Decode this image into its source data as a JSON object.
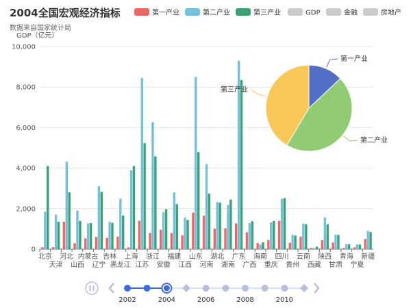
{
  "title": "2004全国宏观经济指标",
  "subtitle": "数据来自国家统计局",
  "colors": {
    "primary": "#ee6666",
    "secondary": "#73c0de",
    "tertiary": "#3ba272",
    "legend_off": "#cccccc",
    "pie_primary": "#5470c6",
    "pie_secondary": "#91cc75",
    "pie_tertiary": "#fac858",
    "timeline": "#3d6be0",
    "timeline_muted": "#b6c0dd"
  },
  "legend": [
    {
      "label": "第一产业",
      "active": true,
      "color": "#ee6666"
    },
    {
      "label": "第二产业",
      "active": true,
      "color": "#73c0de"
    },
    {
      "label": "第三产业",
      "active": true,
      "color": "#3ba272"
    },
    {
      "label": "GDP",
      "active": false,
      "color": "#cccccc"
    },
    {
      "label": "金融",
      "active": false,
      "color": "#cccccc"
    },
    {
      "label": "房地产",
      "active": false,
      "color": "#cccccc"
    }
  ],
  "timeline": {
    "play_icon": "pause-icon",
    "prev_icon": "chevron-left-icon",
    "next_icon": "chevron-right-icon",
    "points": [
      {
        "label": "2002",
        "state": "passed"
      },
      {
        "label": "",
        "state": "passed"
      },
      {
        "label": "2004",
        "state": "current"
      },
      {
        "label": "",
        "state": "future-diamond"
      },
      {
        "label": "2006",
        "state": "future"
      },
      {
        "label": "",
        "state": "future"
      },
      {
        "label": "2008",
        "state": "future"
      },
      {
        "label": "",
        "state": "future"
      },
      {
        "label": "2010",
        "state": "future"
      },
      {
        "label": "",
        "state": "future-diamond"
      }
    ]
  },
  "chart_data": {
    "type": "bar",
    "title": "2004全国宏观经济指标",
    "subtitle": "数据来自国家统计局",
    "ylabel": "GDP（亿元）",
    "ylim": [
      0,
      10000
    ],
    "yticks": [
      "0",
      "2,000",
      "4,000",
      "6,000",
      "8,000",
      "10,000"
    ],
    "grid": true,
    "legend_position": "top",
    "categories": [
      "北京",
      "天津",
      "河北",
      "山西",
      "内蒙古",
      "辽宁",
      "吉林",
      "黑龙江",
      "上海",
      "江苏",
      "浙江",
      "安徽",
      "福建",
      "江西",
      "山东",
      "河南",
      "湖北",
      "湖南",
      "广东",
      "广西",
      "海南",
      "重庆",
      "四川",
      "贵州",
      "云南",
      "西藏",
      "陕西",
      "甘肃",
      "青海",
      "宁夏",
      "新疆"
    ],
    "series": [
      {
        "name": "第一产业",
        "values": [
          95,
          100,
          1350,
          290,
          530,
          600,
          560,
          620,
          85,
          1400,
          800,
          960,
          790,
          680,
          1800,
          1650,
          1010,
          1030,
          1270,
          830,
          300,
          450,
          1400,
          320,
          620,
          60,
          440,
          330,
          60,
          90,
          500
        ]
      },
      {
        "name": "第二产业",
        "values": [
          1850,
          1700,
          4320,
          1910,
          1270,
          3100,
          1350,
          2490,
          3900,
          8450,
          6270,
          1820,
          2800,
          1560,
          8500,
          4200,
          2320,
          2180,
          9300,
          1290,
          230,
          1320,
          2480,
          700,
          1260,
          50,
          1570,
          720,
          240,
          230,
          900
        ]
      },
      {
        "name": "第三产业",
        "values": [
          4100,
          1350,
          2810,
          1390,
          1290,
          2830,
          1300,
          1660,
          4100,
          5230,
          4580,
          1970,
          2220,
          1440,
          4790,
          2740,
          2300,
          2450,
          8340,
          1380,
          340,
          1390,
          2520,
          670,
          1230,
          120,
          1230,
          700,
          240,
          230,
          840
        ]
      }
    ],
    "pie": {
      "type": "pie",
      "slices": [
        {
          "label": "第一产业",
          "value": 25000
        },
        {
          "label": "第二产业",
          "value": 88000
        },
        {
          "label": "第三产业",
          "value": 80000
        }
      ]
    }
  }
}
